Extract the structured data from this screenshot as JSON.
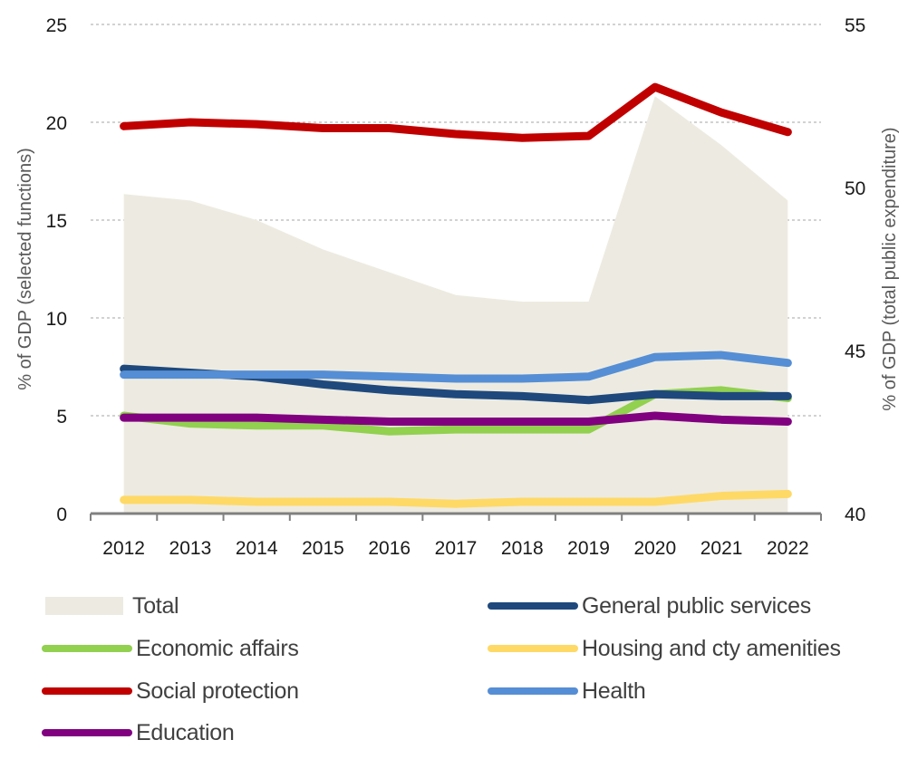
{
  "chart_data": {
    "type": "line",
    "title": "",
    "categories": [
      "2012",
      "2013",
      "2014",
      "2015",
      "2016",
      "2017",
      "2018",
      "2019",
      "2020",
      "2021",
      "2022"
    ],
    "xlabel": "",
    "ylabel": "% of GDP (selected functions)",
    "ylabel_right": "% of GDP (total public expenditure)",
    "ylim": [
      0,
      25
    ],
    "yticks": [
      "0",
      "5",
      "10",
      "15",
      "20",
      "25"
    ],
    "ylim_right": [
      40,
      55
    ],
    "yticks_right": [
      "40",
      "45",
      "50",
      "55"
    ],
    "grid": "horizontal dashed",
    "legend_position": "bottom",
    "area_series": {
      "name": "Total",
      "axis": "right",
      "color": "#EDEBE1",
      "values": [
        49.8,
        49.6,
        49.0,
        48.1,
        47.4,
        46.7,
        46.5,
        46.5,
        52.8,
        51.3,
        49.6
      ]
    },
    "series": [
      {
        "name": "Social protection",
        "key": "social-protection",
        "axis": "left",
        "color": "#C00000",
        "values": [
          19.8,
          20.0,
          19.9,
          19.7,
          19.7,
          19.4,
          19.2,
          19.3,
          21.8,
          20.5,
          19.5
        ]
      },
      {
        "name": "Health",
        "key": "health",
        "axis": "left",
        "color": "#558ED5",
        "values": [
          7.1,
          7.1,
          7.1,
          7.1,
          7.0,
          6.9,
          6.9,
          7.0,
          8.0,
          8.1,
          7.7
        ]
      },
      {
        "name": "General public services",
        "key": "general-public-services",
        "axis": "left",
        "color": "#1F497D",
        "values": [
          7.4,
          7.2,
          7.0,
          6.6,
          6.3,
          6.1,
          6.0,
          5.8,
          6.1,
          6.0,
          6.0
        ]
      },
      {
        "name": "Economic affairs",
        "key": "economic-affairs",
        "axis": "left",
        "color": "#92D050",
        "values": [
          5.0,
          4.6,
          4.5,
          4.5,
          4.2,
          4.3,
          4.3,
          4.3,
          6.1,
          6.3,
          5.9
        ]
      },
      {
        "name": "Education",
        "key": "education",
        "axis": "left",
        "color": "#800080",
        "values": [
          4.9,
          4.9,
          4.9,
          4.8,
          4.7,
          4.7,
          4.7,
          4.7,
          5.0,
          4.8,
          4.7
        ]
      },
      {
        "name": "Housing and cty amenities",
        "key": "housing",
        "axis": "left",
        "color": "#FFD966",
        "values": [
          0.7,
          0.7,
          0.6,
          0.6,
          0.6,
          0.5,
          0.6,
          0.6,
          0.6,
          0.9,
          1.0
        ]
      }
    ]
  },
  "legend": {
    "items": [
      {
        "label": "Total",
        "type": "area",
        "color": "#EDEBE1"
      },
      {
        "label": "General public services",
        "type": "line",
        "color": "#1F497D"
      },
      {
        "label": "Economic affairs",
        "type": "line",
        "color": "#92D050"
      },
      {
        "label": "Housing and cty amenities",
        "type": "line",
        "color": "#FFD966"
      },
      {
        "label": "Social protection",
        "type": "line",
        "color": "#C00000"
      },
      {
        "label": "Health",
        "type": "line",
        "color": "#558ED5"
      },
      {
        "label": "Education",
        "type": "line",
        "color": "#800080"
      }
    ]
  }
}
